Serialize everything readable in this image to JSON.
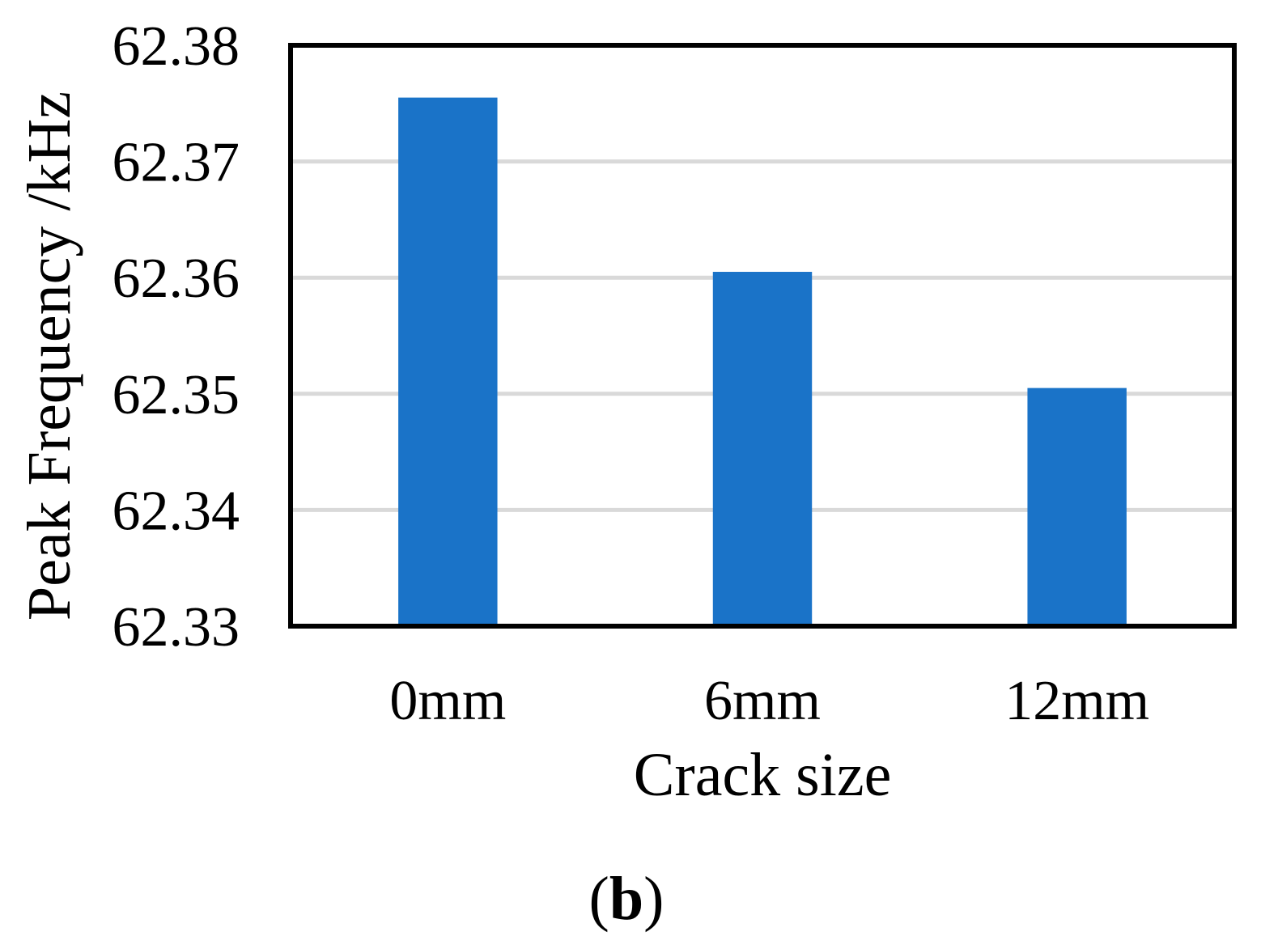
{
  "chart_data": {
    "type": "bar",
    "categories": [
      "0mm",
      "6mm",
      "12mm"
    ],
    "values": [
      62.3755,
      62.3605,
      62.3505
    ],
    "xlabel": "Crack size",
    "ylabel": "Peak Frequency /kHz",
    "ylim": [
      62.33,
      62.38
    ],
    "yticks": [
      "62.33",
      "62.34",
      "62.35",
      "62.36",
      "62.37",
      "62.38"
    ],
    "grid": true,
    "legend": "none",
    "bar_color": "#1a73c8",
    "panel_label": {
      "open": "(",
      "letter": "b",
      "close": ")"
    }
  }
}
